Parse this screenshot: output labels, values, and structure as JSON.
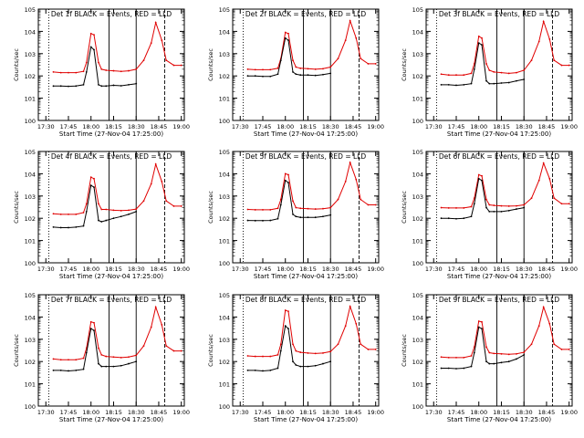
{
  "figure": {
    "ylabel": "Counts/sec",
    "xlabel": "Start Time (27-Nov-04 17:25:00)",
    "xticks": [
      "17:30",
      "17:45",
      "18:00",
      "18:15",
      "18:30",
      "18:45",
      "19:00"
    ],
    "yticks": [
      "10^0",
      "10^1",
      "10^2",
      "10^3",
      "10^4",
      "10^5"
    ],
    "colors": {
      "events": "#000000",
      "lld": "#e00000"
    }
  },
  "chart_data": [
    {
      "type": "line",
      "title": "Det 1f BLACK = Events, RED = LLD",
      "xlabel": "Start Time (27-Nov-04 17:25:00)",
      "ylabel": "Counts/sec",
      "xlim": [
        "17:25",
        "19:02"
      ],
      "ylim": [
        1,
        100000
      ],
      "y_scale": "log",
      "x_categories_hhmm": [
        "17:35",
        "17:40",
        "17:45",
        "17:50",
        "17:55",
        "17:57",
        "18:00",
        "18:02",
        "18:05",
        "18:07",
        "18:10",
        "18:15",
        "18:20",
        "18:25",
        "18:30",
        "18:35",
        "18:40",
        "18:43",
        "18:47",
        "18:50",
        "18:55",
        "19:00"
      ],
      "series": [
        {
          "name": "Events",
          "values": [
            35,
            35,
            34,
            35,
            40,
            150,
            2000,
            1500,
            40,
            35,
            35,
            38,
            36,
            40,
            45,
            null,
            null,
            null,
            null,
            null,
            null,
            null
          ]
        },
        {
          "name": "LLD",
          "values": [
            150,
            140,
            140,
            140,
            160,
            400,
            8000,
            7000,
            400,
            200,
            180,
            170,
            160,
            170,
            200,
            500,
            3000,
            25000,
            4000,
            500,
            300,
            300
          ]
        }
      ],
      "annotations": [
        {
          "type": "vertical_line",
          "time": "17:32",
          "style": "dotted"
        },
        {
          "type": "vertical_line",
          "time": "18:12",
          "style": "solid"
        },
        {
          "type": "vertical_line",
          "time": "18:30",
          "style": "solid"
        },
        {
          "type": "vertical_line",
          "time": "18:49",
          "style": "dashed"
        }
      ],
      "grid": false
    },
    {
      "type": "line",
      "title": "Det 2f BLACK = Events, RED = LLD",
      "xlabel": "Start Time (27-Nov-04 17:25:00)",
      "ylabel": "Counts/sec",
      "xlim": [
        "17:25",
        "19:02"
      ],
      "ylim": [
        1,
        100000
      ],
      "y_scale": "log",
      "x_categories_hhmm": [
        "17:35",
        "17:40",
        "17:45",
        "17:50",
        "17:55",
        "17:57",
        "18:00",
        "18:02",
        "18:05",
        "18:07",
        "18:10",
        "18:15",
        "18:20",
        "18:25",
        "18:30",
        "18:35",
        "18:40",
        "18:43",
        "18:47",
        "18:50",
        "18:55",
        "19:00"
      ],
      "series": [
        {
          "name": "Events",
          "values": [
            100,
            100,
            95,
            95,
            120,
            500,
            5000,
            4000,
            150,
            120,
            110,
            110,
            105,
            115,
            130,
            null,
            null,
            null,
            null,
            null,
            null,
            null
          ]
        },
        {
          "name": "LLD",
          "values": [
            200,
            190,
            190,
            190,
            220,
            600,
            9000,
            8000,
            500,
            250,
            220,
            210,
            200,
            210,
            250,
            600,
            4000,
            30000,
            5000,
            600,
            350,
            350
          ]
        }
      ],
      "annotations": [
        {
          "type": "vertical_line",
          "time": "17:32",
          "style": "dotted"
        },
        {
          "type": "vertical_line",
          "time": "18:12",
          "style": "solid"
        },
        {
          "type": "vertical_line",
          "time": "18:30",
          "style": "solid"
        },
        {
          "type": "vertical_line",
          "time": "18:49",
          "style": "dashed"
        }
      ],
      "grid": false
    },
    {
      "type": "line",
      "title": "Det 3f BLACK = Events, RED = LLD",
      "xlabel": "Start Time (27-Nov-04 17:25:00)",
      "ylabel": "Counts/sec",
      "xlim": [
        "17:25",
        "19:02"
      ],
      "ylim": [
        1,
        100000
      ],
      "y_scale": "log",
      "x_categories_hhmm": [
        "17:35",
        "17:40",
        "17:45",
        "17:50",
        "17:55",
        "17:57",
        "18:00",
        "18:02",
        "18:05",
        "18:07",
        "18:10",
        "18:15",
        "18:20",
        "18:25",
        "18:30",
        "18:35",
        "18:40",
        "18:43",
        "18:47",
        "18:50",
        "18:55",
        "19:00"
      ],
      "series": [
        {
          "name": "Events",
          "values": [
            40,
            40,
            38,
            40,
            45,
            200,
            3000,
            2500,
            60,
            45,
            45,
            48,
            50,
            60,
            70,
            null,
            null,
            null,
            null,
            null,
            null,
            null
          ]
        },
        {
          "name": "LLD",
          "values": [
            120,
            110,
            110,
            110,
            130,
            350,
            6000,
            5000,
            350,
            180,
            150,
            140,
            130,
            140,
            180,
            500,
            3500,
            28000,
            4500,
            500,
            300,
            300
          ]
        }
      ],
      "annotations": [
        {
          "type": "vertical_line",
          "time": "17:32",
          "style": "dotted"
        },
        {
          "type": "vertical_line",
          "time": "18:12",
          "style": "solid"
        },
        {
          "type": "vertical_line",
          "time": "18:30",
          "style": "solid"
        },
        {
          "type": "vertical_line",
          "time": "18:49",
          "style": "dashed"
        }
      ],
      "grid": false
    },
    {
      "type": "line",
      "title": "Det 4f BLACK = Events, RED = LLD",
      "xlabel": "Start Time (27-Nov-04 17:25:00)",
      "ylabel": "Counts/sec",
      "xlim": [
        "17:25",
        "19:02"
      ],
      "ylim": [
        1,
        100000
      ],
      "y_scale": "log",
      "x_categories_hhmm": [
        "17:35",
        "17:40",
        "17:45",
        "17:50",
        "17:55",
        "17:57",
        "18:00",
        "18:02",
        "18:05",
        "18:07",
        "18:10",
        "18:15",
        "18:20",
        "18:25",
        "18:30",
        "18:35",
        "18:40",
        "18:43",
        "18:47",
        "18:50",
        "18:55",
        "19:00"
      ],
      "series": [
        {
          "name": "Events",
          "values": [
            40,
            38,
            38,
            40,
            45,
            200,
            3000,
            2500,
            80,
            70,
            80,
            100,
            120,
            150,
            200,
            null,
            null,
            null,
            null,
            null,
            null,
            null
          ]
        },
        {
          "name": "LLD",
          "values": [
            160,
            150,
            150,
            150,
            180,
            450,
            7000,
            6000,
            450,
            250,
            250,
            230,
            220,
            230,
            260,
            600,
            3500,
            27000,
            4500,
            600,
            350,
            350
          ]
        }
      ],
      "annotations": [
        {
          "type": "vertical_line",
          "time": "17:32",
          "style": "dotted"
        },
        {
          "type": "vertical_line",
          "time": "18:12",
          "style": "solid"
        },
        {
          "type": "vertical_line",
          "time": "18:30",
          "style": "solid"
        },
        {
          "type": "vertical_line",
          "time": "18:49",
          "style": "dashed"
        }
      ],
      "grid": false
    },
    {
      "type": "line",
      "title": "Det 5f BLACK = Events, RED = LLD",
      "xlabel": "Start Time (27-Nov-04 17:25:00)",
      "ylabel": "Counts/sec",
      "xlim": [
        "17:25",
        "19:02"
      ],
      "ylim": [
        1,
        100000
      ],
      "y_scale": "log",
      "x_categories_hhmm": [
        "17:35",
        "17:40",
        "17:45",
        "17:50",
        "17:55",
        "17:57",
        "18:00",
        "18:02",
        "18:05",
        "18:07",
        "18:10",
        "18:15",
        "18:20",
        "18:25",
        "18:30",
        "18:35",
        "18:40",
        "18:43",
        "18:47",
        "18:50",
        "18:55",
        "19:00"
      ],
      "series": [
        {
          "name": "Events",
          "values": [
            80,
            78,
            78,
            80,
            95,
            400,
            5000,
            4000,
            150,
            120,
            110,
            110,
            110,
            120,
            140,
            null,
            null,
            null,
            null,
            null,
            null,
            null
          ]
        },
        {
          "name": "LLD",
          "values": [
            250,
            240,
            240,
            240,
            280,
            700,
            10000,
            9000,
            600,
            300,
            280,
            270,
            260,
            270,
            300,
            700,
            4500,
            32000,
            5500,
            700,
            400,
            400
          ]
        }
      ],
      "annotations": [
        {
          "type": "vertical_line",
          "time": "17:32",
          "style": "dotted"
        },
        {
          "type": "vertical_line",
          "time": "18:12",
          "style": "solid"
        },
        {
          "type": "vertical_line",
          "time": "18:30",
          "style": "solid"
        },
        {
          "type": "vertical_line",
          "time": "18:49",
          "style": "dashed"
        }
      ],
      "grid": false
    },
    {
      "type": "line",
      "title": "Det 6f BLACK = Events, RED = LLD",
      "xlabel": "Start Time (27-Nov-04 17:25:00)",
      "ylabel": "Counts/sec",
      "xlim": [
        "17:25",
        "19:02"
      ],
      "ylim": [
        1,
        100000
      ],
      "y_scale": "log",
      "x_categories_hhmm": [
        "17:35",
        "17:40",
        "17:45",
        "17:50",
        "17:55",
        "17:57",
        "18:00",
        "18:02",
        "18:05",
        "18:07",
        "18:10",
        "18:15",
        "18:20",
        "18:25",
        "18:30",
        "18:35",
        "18:40",
        "18:43",
        "18:47",
        "18:50",
        "18:55",
        "19:00"
      ],
      "series": [
        {
          "name": "Events",
          "values": [
            100,
            100,
            95,
            100,
            120,
            450,
            6000,
            5000,
            300,
            200,
            200,
            200,
            220,
            260,
            300,
            null,
            null,
            null,
            null,
            null,
            null,
            null
          ]
        },
        {
          "name": "LLD",
          "values": [
            300,
            290,
            290,
            290,
            330,
            800,
            9000,
            8000,
            700,
            400,
            380,
            360,
            350,
            360,
            400,
            800,
            5000,
            30000,
            6000,
            800,
            450,
            450
          ]
        }
      ],
      "annotations": [
        {
          "type": "vertical_line",
          "time": "17:32",
          "style": "dotted"
        },
        {
          "type": "vertical_line",
          "time": "18:12",
          "style": "solid"
        },
        {
          "type": "vertical_line",
          "time": "18:30",
          "style": "solid"
        },
        {
          "type": "vertical_line",
          "time": "18:49",
          "style": "dashed"
        }
      ],
      "grid": false
    },
    {
      "type": "line",
      "title": "Det 7f BLACK = Events, RED = LLD",
      "xlabel": "Start Time (27-Nov-04 17:25:00)",
      "ylabel": "Counts/sec",
      "xlim": [
        "17:25",
        "19:02"
      ],
      "ylim": [
        1,
        100000
      ],
      "y_scale": "log",
      "x_categories_hhmm": [
        "17:35",
        "17:40",
        "17:45",
        "17:50",
        "17:55",
        "17:57",
        "18:00",
        "18:02",
        "18:05",
        "18:07",
        "18:10",
        "18:15",
        "18:20",
        "18:25",
        "18:30",
        "18:35",
        "18:40",
        "18:43",
        "18:47",
        "18:50",
        "18:55",
        "19:00"
      ],
      "series": [
        {
          "name": "Events",
          "values": [
            40,
            40,
            38,
            40,
            45,
            250,
            3000,
            2500,
            80,
            60,
            60,
            60,
            65,
            80,
            100,
            null,
            null,
            null,
            null,
            null,
            null,
            null
          ]
        },
        {
          "name": "LLD",
          "values": [
            130,
            120,
            120,
            120,
            140,
            400,
            6000,
            5500,
            400,
            200,
            170,
            160,
            150,
            160,
            190,
            500,
            3500,
            28000,
            4500,
            500,
            300,
            300
          ]
        }
      ],
      "annotations": [
        {
          "type": "vertical_line",
          "time": "17:32",
          "style": "dotted"
        },
        {
          "type": "vertical_line",
          "time": "18:12",
          "style": "solid"
        },
        {
          "type": "vertical_line",
          "time": "18:30",
          "style": "solid"
        },
        {
          "type": "vertical_line",
          "time": "18:49",
          "style": "dashed"
        }
      ],
      "grid": false
    },
    {
      "type": "line",
      "title": "Det 8f BLACK = Events, RED = LLD",
      "xlabel": "Start Time (27-Nov-04 17:25:00)",
      "ylabel": "Counts/sec",
      "xlim": [
        "17:25",
        "19:02"
      ],
      "ylim": [
        1,
        100000
      ],
      "y_scale": "log",
      "x_categories_hhmm": [
        "17:35",
        "17:40",
        "17:45",
        "17:50",
        "17:55",
        "17:57",
        "18:00",
        "18:02",
        "18:05",
        "18:07",
        "18:10",
        "18:15",
        "18:20",
        "18:25",
        "18:30",
        "18:35",
        "18:40",
        "18:43",
        "18:47",
        "18:50",
        "18:55",
        "19:00"
      ],
      "series": [
        {
          "name": "Events",
          "values": [
            40,
            40,
            38,
            40,
            50,
            300,
            4000,
            3000,
            100,
            70,
            60,
            60,
            65,
            80,
            100,
            null,
            null,
            null,
            null,
            null,
            null,
            null
          ]
        },
        {
          "name": "LLD",
          "values": [
            180,
            170,
            170,
            170,
            200,
            600,
            20000,
            18000,
            600,
            300,
            260,
            240,
            230,
            240,
            280,
            600,
            4000,
            30000,
            5000,
            600,
            350,
            350
          ]
        }
      ],
      "annotations": [
        {
          "type": "vertical_line",
          "time": "17:32",
          "style": "dotted"
        },
        {
          "type": "vertical_line",
          "time": "18:12",
          "style": "solid"
        },
        {
          "type": "vertical_line",
          "time": "18:30",
          "style": "solid"
        },
        {
          "type": "vertical_line",
          "time": "18:49",
          "style": "dashed"
        }
      ],
      "grid": false
    },
    {
      "type": "line",
      "title": "Det 9f BLACK = Events, RED = LLD",
      "xlabel": "Start Time (27-Nov-04 17:25:00)",
      "ylabel": "Counts/sec",
      "xlim": [
        "17:25",
        "19:02"
      ],
      "ylim": [
        1,
        100000
      ],
      "y_scale": "log",
      "x_categories_hhmm": [
        "17:35",
        "17:40",
        "17:45",
        "17:50",
        "17:55",
        "17:57",
        "18:00",
        "18:02",
        "18:05",
        "18:07",
        "18:10",
        "18:15",
        "18:20",
        "18:25",
        "18:30",
        "18:35",
        "18:40",
        "18:43",
        "18:47",
        "18:50",
        "18:55",
        "19:00"
      ],
      "series": [
        {
          "name": "Events",
          "values": [
            50,
            50,
            48,
            50,
            60,
            250,
            3500,
            3000,
            100,
            80,
            80,
            90,
            100,
            130,
            200,
            null,
            null,
            null,
            null,
            null,
            null,
            null
          ]
        },
        {
          "name": "LLD",
          "values": [
            160,
            150,
            150,
            150,
            180,
            450,
            6500,
            6000,
            450,
            250,
            230,
            220,
            210,
            220,
            260,
            600,
            4000,
            28000,
            5000,
            600,
            350,
            350
          ]
        }
      ],
      "annotations": [
        {
          "type": "vertical_line",
          "time": "17:32",
          "style": "dotted"
        },
        {
          "type": "vertical_line",
          "time": "18:12",
          "style": "solid"
        },
        {
          "type": "vertical_line",
          "time": "18:30",
          "style": "solid"
        },
        {
          "type": "vertical_line",
          "time": "18:49",
          "style": "dashed"
        }
      ],
      "grid": false
    }
  ]
}
